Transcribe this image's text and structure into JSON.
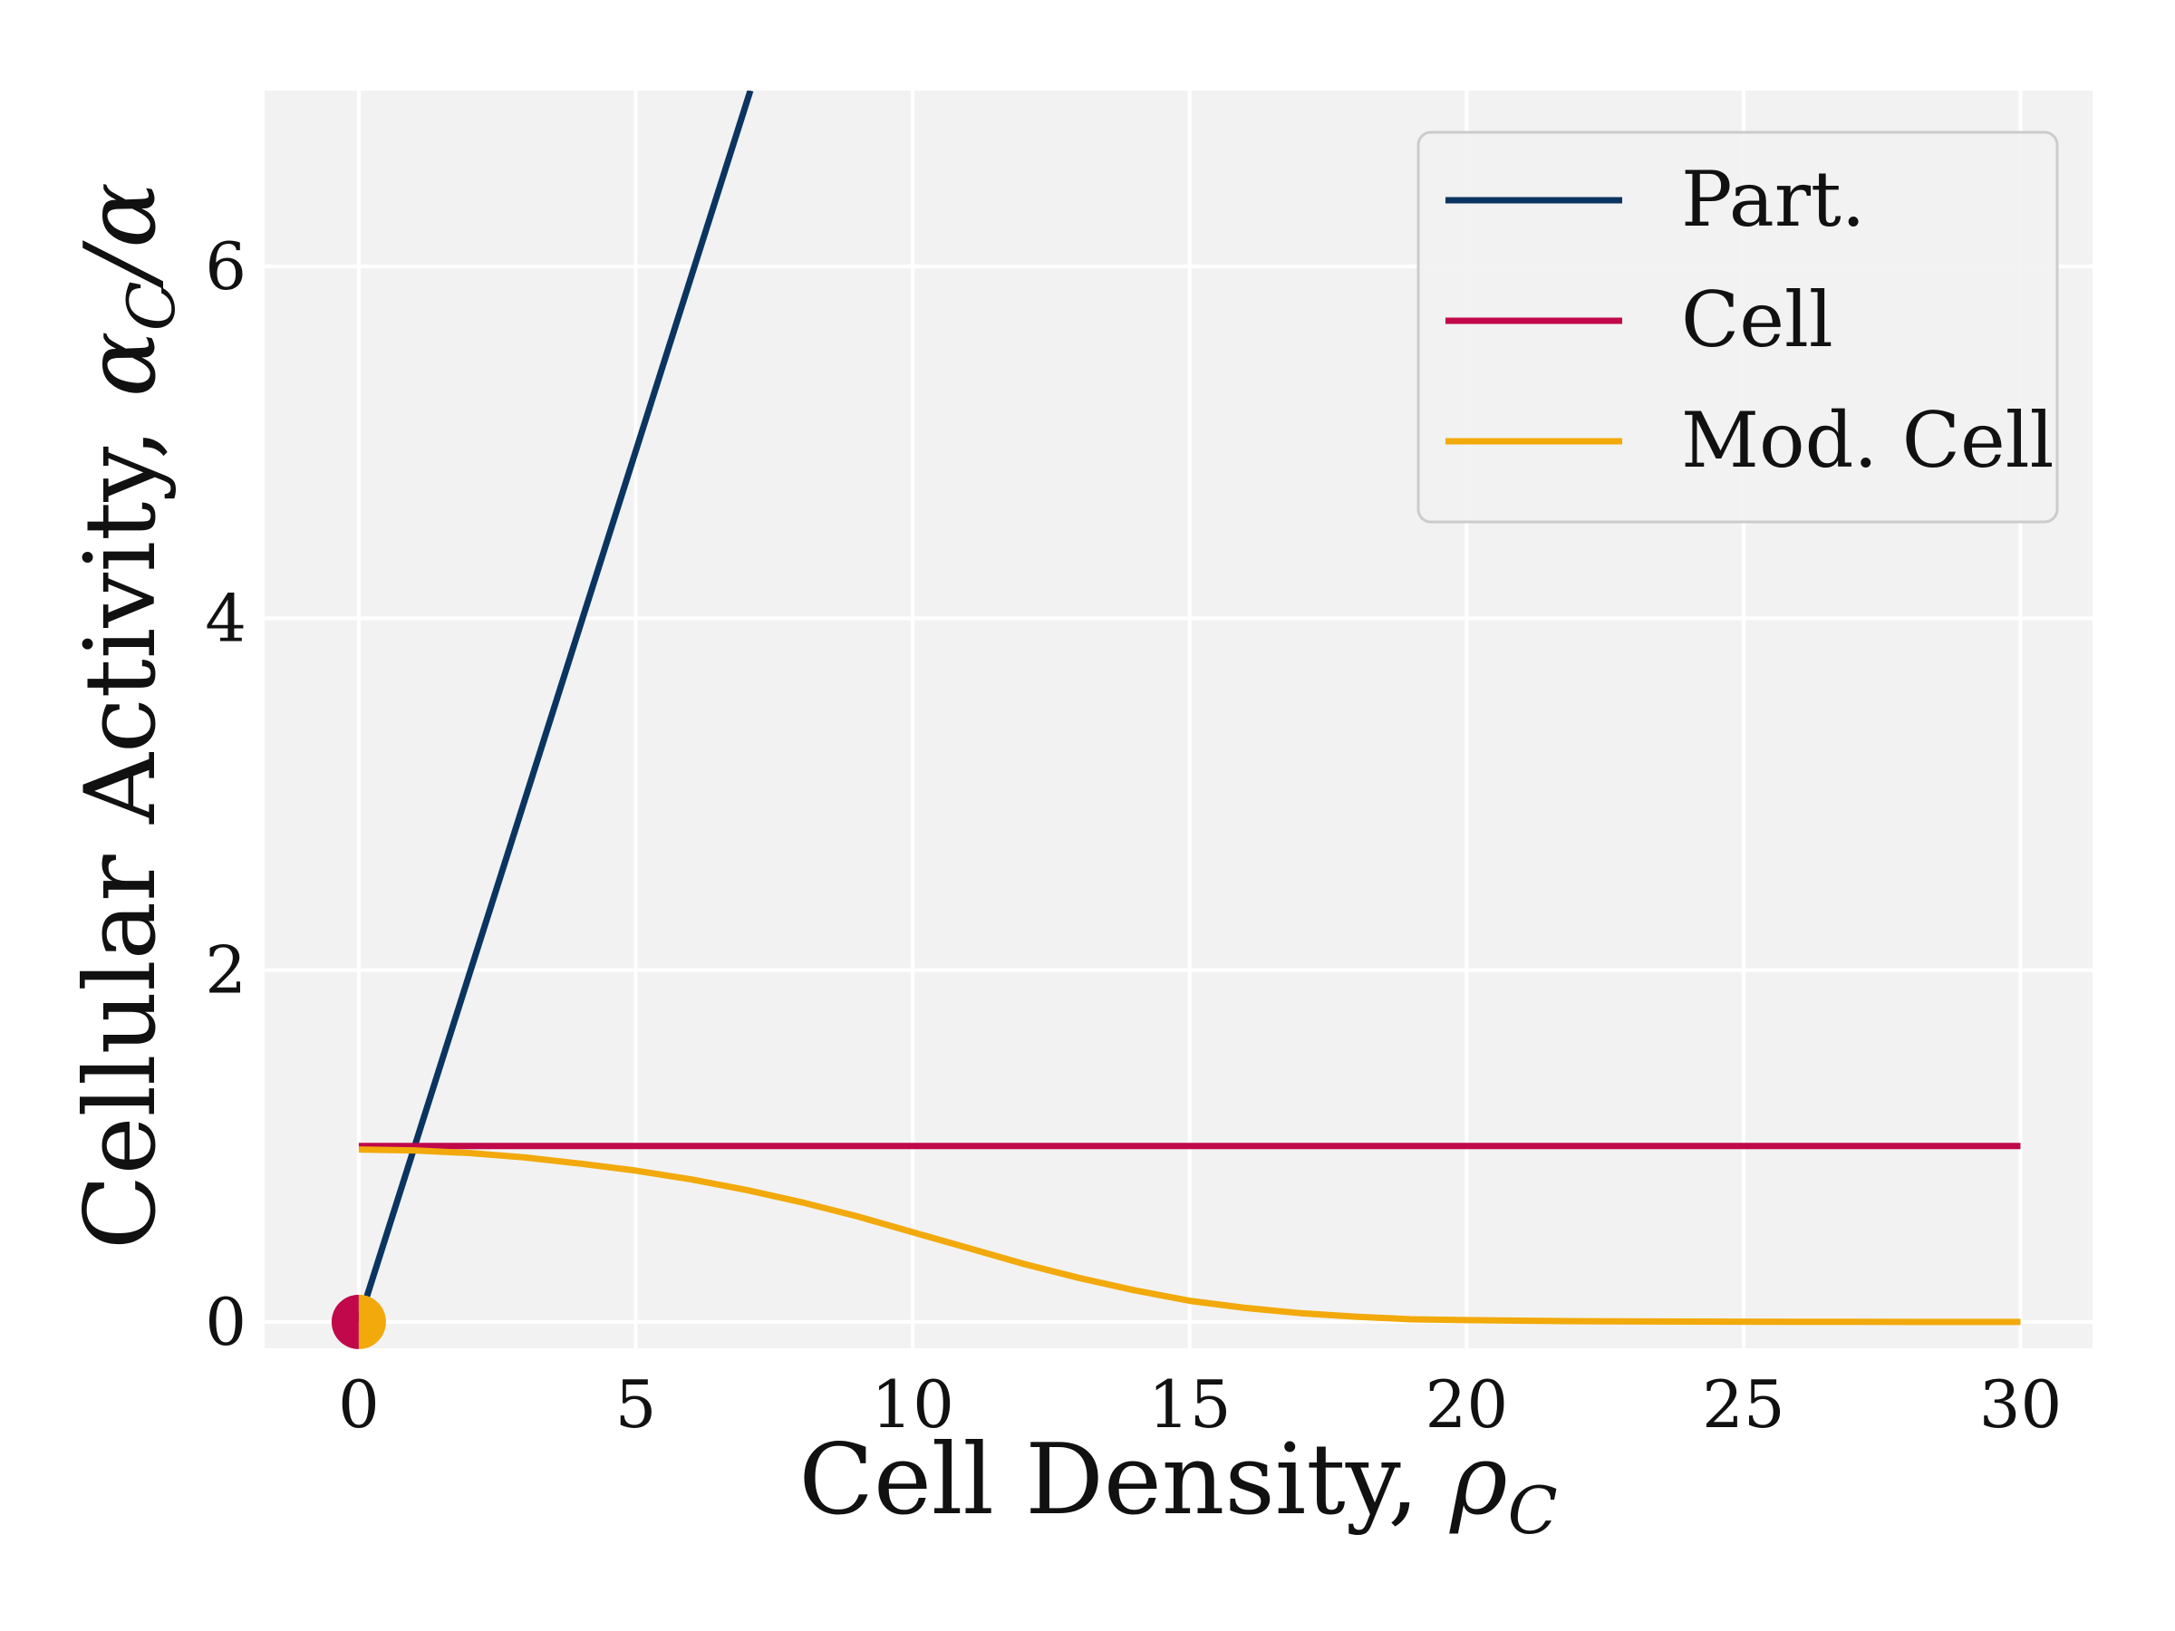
{
  "chart_data": {
    "type": "line",
    "title": "",
    "xlabel": {
      "text": "Cell Density, ",
      "math": "ρ",
      "sub": "C"
    },
    "ylabel": {
      "text": "Cellular Activity, ",
      "math": "α",
      "sub": "C",
      "suffix": "/α"
    },
    "xlim": [
      -1.7,
      31.3
    ],
    "ylim": [
      -0.15,
      7.0
    ],
    "xticks": [
      0,
      5,
      10,
      15,
      20,
      25,
      30
    ],
    "yticks": [
      0,
      2,
      4,
      6
    ],
    "grid": true,
    "legend": "top-right",
    "series": [
      {
        "name": "Part.",
        "color": "#0b3560",
        "x": [
          0,
          7.07
        ],
        "y": [
          0,
          7.0
        ]
      },
      {
        "name": "Cell",
        "color": "#c0084a",
        "x": [
          0,
          30
        ],
        "y": [
          1.0,
          1.0
        ]
      },
      {
        "name": "Mod. Cell",
        "color": "#f2a90b",
        "x": [
          0,
          1,
          2,
          3,
          4,
          5,
          6,
          7,
          8,
          9,
          10,
          11,
          12,
          13,
          14,
          15,
          16,
          17,
          18,
          19,
          20,
          22,
          24,
          26,
          28,
          30
        ],
        "y": [
          0.98,
          0.975,
          0.96,
          0.935,
          0.9,
          0.86,
          0.81,
          0.75,
          0.68,
          0.6,
          0.51,
          0.42,
          0.33,
          0.25,
          0.18,
          0.12,
          0.08,
          0.05,
          0.03,
          0.015,
          0.01,
          0.004,
          0.002,
          0.001,
          0.0,
          0.0
        ]
      }
    ],
    "markers": [
      {
        "x": 0,
        "y": 0,
        "left_color": "#c0084a",
        "right_color": "#f2a90b"
      }
    ]
  }
}
